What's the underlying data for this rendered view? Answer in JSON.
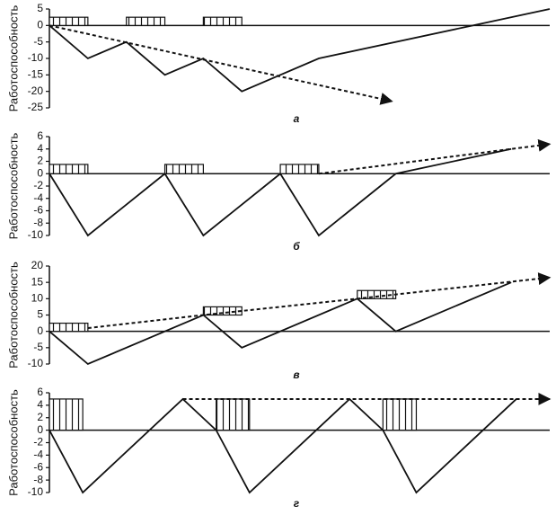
{
  "chart_data": [
    {
      "type": "line",
      "ylabel": "Работоспособность",
      "caption": "а",
      "xlim": [
        0,
        13
      ],
      "ylim": [
        -25,
        5
      ],
      "yticks": [
        5,
        0,
        -5,
        -10,
        -15,
        -20,
        -25
      ],
      "series": [
        {
          "style": "solid",
          "color": "#111",
          "x": [
            0,
            1,
            2,
            3,
            4,
            5,
            7,
            11,
            13
          ],
          "values": [
            0,
            -10,
            -5,
            -15,
            -10,
            -20,
            -10,
            0,
            5
          ]
        },
        {
          "style": "dotted",
          "arrow": true,
          "color": "#111",
          "x": [
            0,
            8.9
          ],
          "values": [
            0,
            -23
          ]
        }
      ],
      "blocks": {
        "x0": [
          0,
          2,
          4
        ],
        "x1": [
          1,
          3,
          5
        ],
        "base": [
          0,
          0,
          0
        ],
        "top": [
          2.5,
          2.5,
          2.5
        ]
      }
    },
    {
      "type": "line",
      "ylabel": "Работоспособность",
      "caption": "б",
      "xlim": [
        0,
        13
      ],
      "ylim": [
        -10,
        6
      ],
      "yticks": [
        6,
        4,
        2,
        0,
        -2,
        -4,
        -6,
        -8,
        -10
      ],
      "series": [
        {
          "style": "solid",
          "color": "#111",
          "x": [
            0,
            1,
            3,
            4,
            6,
            7,
            9,
            12
          ],
          "values": [
            0,
            -10,
            0,
            -10,
            0,
            -10,
            0,
            4
          ]
        },
        {
          "style": "dotted",
          "arrow": true,
          "color": "#111",
          "x": [
            7,
            13
          ],
          "values": [
            0,
            4.8
          ]
        }
      ],
      "blocks": {
        "x0": [
          0,
          3,
          6
        ],
        "x1": [
          1,
          4,
          7
        ],
        "base": [
          0,
          0,
          0
        ],
        "top": [
          1.5,
          1.5,
          1.5
        ]
      }
    },
    {
      "type": "line",
      "ylabel": "Работоспособность",
      "caption": "в",
      "xlim": [
        0,
        13
      ],
      "ylim": [
        -10,
        20
      ],
      "yticks": [
        20,
        15,
        10,
        5,
        0,
        -5,
        -10
      ],
      "series": [
        {
          "style": "solid",
          "color": "#111",
          "x": [
            0,
            1,
            4,
            5,
            8,
            9,
            12
          ],
          "values": [
            0,
            -10,
            5,
            -5,
            10,
            0,
            15
          ]
        },
        {
          "style": "dotted",
          "arrow": true,
          "color": "#111",
          "x": [
            1,
            4,
            8,
            13
          ],
          "values": [
            1,
            5,
            10,
            16.5
          ]
        }
      ],
      "blocks": {
        "x0": [
          0,
          4,
          8
        ],
        "x1": [
          1,
          5,
          9
        ],
        "base": [
          0,
          5,
          10
        ],
        "top": [
          2.5,
          7.5,
          12.5
        ]
      }
    },
    {
      "type": "line",
      "ylabel": "Работоспособность",
      "caption": "г",
      "xlim": [
        0,
        15
      ],
      "ylim": [
        -10,
        6
      ],
      "yticks": [
        6,
        4,
        2,
        0,
        -2,
        -4,
        -6,
        -8,
        -10
      ],
      "series": [
        {
          "style": "solid",
          "color": "#111",
          "x": [
            0,
            1,
            4,
            5,
            6,
            9,
            10,
            11,
            14
          ],
          "values": [
            0,
            -10,
            5,
            0,
            -10,
            5,
            0,
            -10,
            5
          ]
        },
        {
          "style": "dotted",
          "arrow": true,
          "color": "#111",
          "x": [
            4,
            15
          ],
          "values": [
            5,
            5
          ]
        }
      ],
      "blocks": {
        "x0": [
          0,
          5,
          10
        ],
        "x1": [
          1,
          6,
          11
        ],
        "base": [
          0,
          0,
          0
        ],
        "top": [
          5,
          5,
          5
        ]
      }
    }
  ]
}
